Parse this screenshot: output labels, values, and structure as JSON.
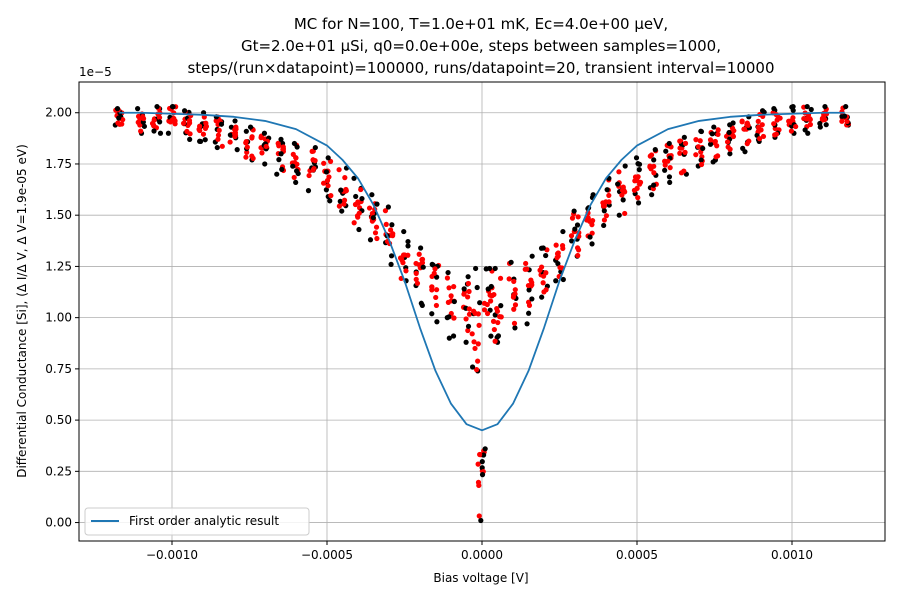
{
  "chart_data": {
    "type": "scatter",
    "title_lines": [
      "MC for N=100, T=1.0e+01 mK, Ec=4.0e+00 μeV,",
      "Gt=2.0e+01 μSi, q0=0.0e+00e, steps between samples=1000,",
      "steps/(run×datapoint)=100000, runs/datapoint=20, transient interval=10000"
    ],
    "xlabel": "Bias voltage [V]",
    "ylabel": "Differential Conductance [Si], (Δ I/Δ V, Δ V=1.9e-05 eV)",
    "y_offset_text": "1e−5",
    "xlim": [
      -0.0013,
      0.0013
    ],
    "ylim": [
      -0.09,
      2.15
    ],
    "x_ticks": [
      -0.001,
      -0.0005,
      0.0,
      0.0005,
      0.001
    ],
    "x_tick_labels": [
      "−0.0010",
      "−0.0005",
      "0.0000",
      "0.0005",
      "0.0010"
    ],
    "y_ticks": [
      0.0,
      0.25,
      0.5,
      0.75,
      1.0,
      1.25,
      1.5,
      1.75,
      2.0
    ],
    "y_tick_labels": [
      "0.00",
      "0.25",
      "0.50",
      "0.75",
      "1.00",
      "1.25",
      "1.50",
      "1.75",
      "2.00"
    ],
    "grid": true,
    "legend_position": "lower-left",
    "colors": {
      "analytic": "#1f77b4",
      "mc_dark": "#000000",
      "mc_red": "#ff0000",
      "grid": "#b0b0b0"
    },
    "analytic_curve": {
      "name": "First order analytic result",
      "x": [
        -0.00117,
        -0.0011,
        -0.001,
        -0.0009,
        -0.0008,
        -0.0007,
        -0.0006,
        -0.0005,
        -0.00045,
        -0.0004,
        -0.00035,
        -0.0003,
        -0.00025,
        -0.0002,
        -0.00015,
        -0.0001,
        -5e-05,
        0.0,
        5e-05,
        0.0001,
        0.00015,
        0.0002,
        0.00025,
        0.0003,
        0.00035,
        0.0004,
        0.00045,
        0.0005,
        0.0006,
        0.0007,
        0.0008,
        0.0009,
        0.001,
        0.0011,
        0.00117
      ],
      "y": [
        2.0,
        2.0,
        1.995,
        1.99,
        1.98,
        1.96,
        1.92,
        1.84,
        1.77,
        1.68,
        1.55,
        1.38,
        1.18,
        0.95,
        0.74,
        0.58,
        0.48,
        0.45,
        0.48,
        0.58,
        0.74,
        0.95,
        1.18,
        1.38,
        1.55,
        1.68,
        1.77,
        1.84,
        1.92,
        1.96,
        1.98,
        1.99,
        1.995,
        2.0,
        2.0
      ]
    },
    "mc_points": {
      "x": [
        -0.00117,
        -0.0011,
        -0.00105,
        -0.001,
        -0.00095,
        -0.0009,
        -0.00085,
        -0.0008,
        -0.00075,
        -0.0007,
        -0.00065,
        -0.0006,
        -0.00055,
        -0.0005,
        -0.00045,
        -0.0004,
        -0.00035,
        -0.0003,
        -0.00025,
        -0.0002,
        -0.00015,
        -0.0001,
        -5e-05,
        -2e-05,
        0.0,
        2e-05,
        5e-05,
        0.0001,
        0.00015,
        0.0002,
        0.00025,
        0.0003,
        0.00035,
        0.0004,
        0.00045,
        0.0005,
        0.00055,
        0.0006,
        0.00065,
        0.0007,
        0.00075,
        0.0008,
        0.00085,
        0.0009,
        0.00095,
        0.001,
        0.00105,
        0.0011,
        0.00117
      ],
      "y_mean": [
        1.98,
        1.97,
        1.97,
        1.96,
        1.95,
        1.93,
        1.92,
        1.89,
        1.86,
        1.83,
        1.8,
        1.76,
        1.72,
        1.67,
        1.62,
        1.56,
        1.48,
        1.4,
        1.3,
        1.22,
        1.15,
        1.08,
        1.05,
        1.02,
        0.25,
        1.1,
        1.05,
        1.1,
        1.15,
        1.22,
        1.3,
        1.4,
        1.48,
        1.56,
        1.62,
        1.67,
        1.72,
        1.76,
        1.8,
        1.83,
        1.86,
        1.89,
        1.92,
        1.93,
        1.95,
        1.96,
        1.97,
        1.97,
        1.98
      ],
      "y_min": [
        1.94,
        1.9,
        1.9,
        1.9,
        1.87,
        1.86,
        1.83,
        1.82,
        1.77,
        1.75,
        1.7,
        1.66,
        1.62,
        1.57,
        1.52,
        1.43,
        1.38,
        1.26,
        1.18,
        1.06,
        0.98,
        0.9,
        0.88,
        0.74,
        0.01,
        0.91,
        0.88,
        0.95,
        0.97,
        1.1,
        1.18,
        1.3,
        1.36,
        1.45,
        1.5,
        1.56,
        1.6,
        1.66,
        1.7,
        1.74,
        1.76,
        1.8,
        1.81,
        1.86,
        1.88,
        1.9,
        1.9,
        1.93,
        1.94
      ],
      "y_max": [
        2.02,
        2.02,
        2.03,
        2.03,
        2.01,
        2.0,
        1.98,
        1.96,
        1.93,
        1.9,
        1.87,
        1.85,
        1.83,
        1.78,
        1.73,
        1.68,
        1.6,
        1.54,
        1.42,
        1.34,
        1.26,
        1.22,
        1.2,
        1.24,
        0.36,
        1.24,
        1.24,
        1.27,
        1.3,
        1.34,
        1.42,
        1.52,
        1.6,
        1.68,
        1.74,
        1.78,
        1.82,
        1.85,
        1.88,
        1.91,
        1.93,
        1.95,
        1.98,
        2.01,
        2.02,
        2.03,
        2.03,
        2.03,
        2.03
      ]
    }
  }
}
